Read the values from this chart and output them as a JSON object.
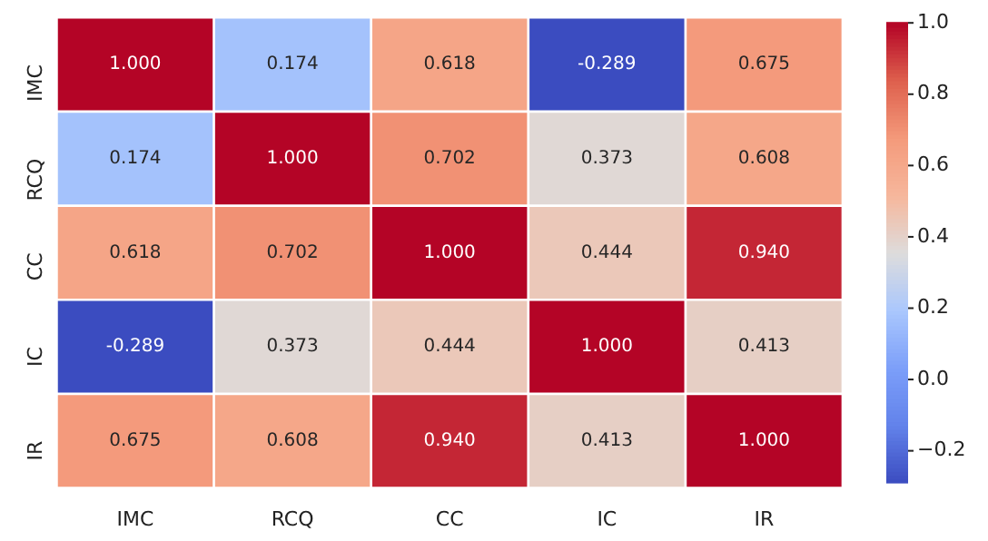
{
  "chart_data": {
    "type": "heatmap",
    "categories": [
      "IMC",
      "RCQ",
      "CC",
      "IC",
      "IR"
    ],
    "y_categories": [
      "IMC",
      "RCQ",
      "CC",
      "IC",
      "IR"
    ],
    "cells": [
      [
        1.0,
        0.174,
        0.618,
        -0.289,
        0.675
      ],
      [
        0.174,
        1.0,
        0.702,
        0.373,
        0.608
      ],
      [
        0.618,
        0.702,
        1.0,
        0.444,
        0.94
      ],
      [
        -0.289,
        0.373,
        0.444,
        1.0,
        0.413
      ],
      [
        0.675,
        0.608,
        0.94,
        0.413,
        1.0
      ]
    ],
    "cell_labels": [
      [
        "1.000",
        "0.174",
        "0.618",
        "-0.289",
        "0.675"
      ],
      [
        "0.174",
        "1.000",
        "0.702",
        "0.373",
        "0.608"
      ],
      [
        "0.618",
        "0.702",
        "1.000",
        "0.444",
        "0.940"
      ],
      [
        "-0.289",
        "0.373",
        "0.444",
        "1.000",
        "0.413"
      ],
      [
        "0.675",
        "0.608",
        "0.940",
        "0.413",
        "1.000"
      ]
    ],
    "clim": [
      -0.289,
      1.0
    ],
    "cticks": [
      {
        "value": -0.2,
        "label": "−0.2"
      },
      {
        "value": 0,
        "label": "0.0"
      },
      {
        "value": 0.2,
        "label": "0.2"
      },
      {
        "value": 0.4,
        "label": "0.4"
      },
      {
        "value": 0.6,
        "label": "0.6"
      },
      {
        "value": 0.8,
        "label": "0.8"
      },
      {
        "value": 1,
        "label": "1.0"
      }
    ]
  }
}
